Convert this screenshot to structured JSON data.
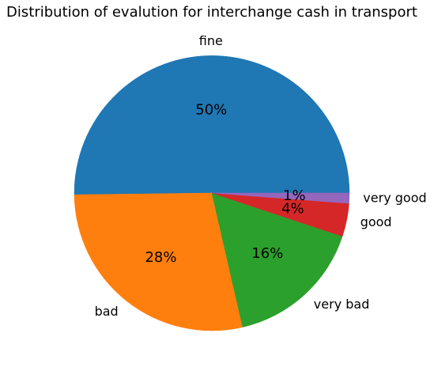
{
  "chart_data": {
    "type": "pie",
    "title": "Distribution of evalution for interchange cash in transport",
    "start_angle_deg": 0,
    "direction": "counterclockwise",
    "slices": [
      {
        "label": "fine",
        "value": 50.2,
        "pct_label": "50%",
        "color": "#1f77b4"
      },
      {
        "label": "bad",
        "value": 28.4,
        "pct_label": "28%",
        "color": "#ff7f0e"
      },
      {
        "label": "very bad",
        "value": 16.3,
        "pct_label": "16%",
        "color": "#2ca02c"
      },
      {
        "label": "good",
        "value": 3.9,
        "pct_label": "4%",
        "color": "#d62728"
      },
      {
        "label": "very good",
        "value": 1.2,
        "pct_label": "1%",
        "color": "#9467bd"
      }
    ]
  }
}
